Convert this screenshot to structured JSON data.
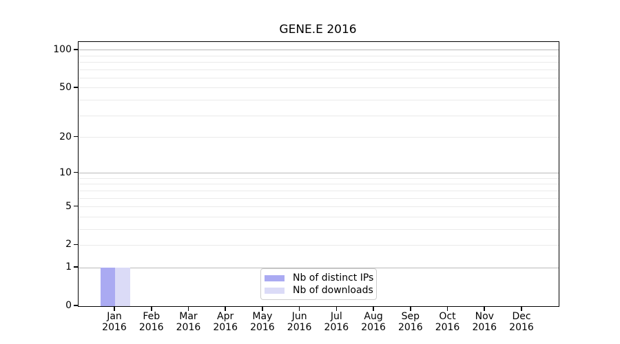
{
  "figure": {
    "title": "GENE.E 2016"
  },
  "chart_data": {
    "type": "bar",
    "title": "GENE.E 2016",
    "x_month_labels": [
      "Jan",
      "Feb",
      "Mar",
      "Apr",
      "May",
      "Jun",
      "Jul",
      "Aug",
      "Sep",
      "Oct",
      "Nov",
      "Dec"
    ],
    "x_year_labels": [
      "2016",
      "2016",
      "2016",
      "2016",
      "2016",
      "2016",
      "2016",
      "2016",
      "2016",
      "2016",
      "2016",
      "2016"
    ],
    "categories": [
      "Jan 2016",
      "Feb 2016",
      "Mar 2016",
      "Apr 2016",
      "May 2016",
      "Jun 2016",
      "Jul 2016",
      "Aug 2016",
      "Sep 2016",
      "Oct 2016",
      "Nov 2016",
      "Dec 2016"
    ],
    "series": [
      {
        "name": "Nb of distinct IPs",
        "color": "#aaaaf2",
        "values": [
          1,
          0,
          0,
          0,
          0,
          0,
          0,
          0,
          0,
          0,
          0,
          0
        ]
      },
      {
        "name": "Nb of downloads",
        "color": "#dbdbf7",
        "values": [
          1,
          0,
          0,
          0,
          0,
          0,
          0,
          0,
          0,
          0,
          0,
          0
        ]
      }
    ],
    "y_axis": {
      "scale": "log1p",
      "tick_values": [
        0,
        1,
        2,
        5,
        10,
        20,
        50,
        100
      ],
      "tick_labels": [
        "0",
        "1",
        "2",
        "5",
        "10",
        "20",
        "50",
        "100"
      ],
      "decade_gridlines": [
        1,
        10,
        100
      ],
      "minor_gridlines": [
        2,
        3,
        4,
        5,
        6,
        7,
        8,
        9,
        20,
        30,
        40,
        50,
        60,
        70,
        80,
        90
      ],
      "ylim": [
        0,
        116
      ]
    },
    "legend": {
      "entries": [
        "Nb of distinct IPs",
        "Nb of downloads"
      ],
      "position": "lower center"
    },
    "grid": true,
    "xlabel": "",
    "ylabel": ""
  },
  "colors": {
    "bar_distinct_ips": "#aaaaf2",
    "bar_downloads": "#dbdbf7",
    "decade_gridline": "#b9b9b9",
    "minor_gridline": "#eaeaea",
    "axis_frame": "#000000",
    "legend_border": "#cccccc",
    "text": "#000000"
  }
}
